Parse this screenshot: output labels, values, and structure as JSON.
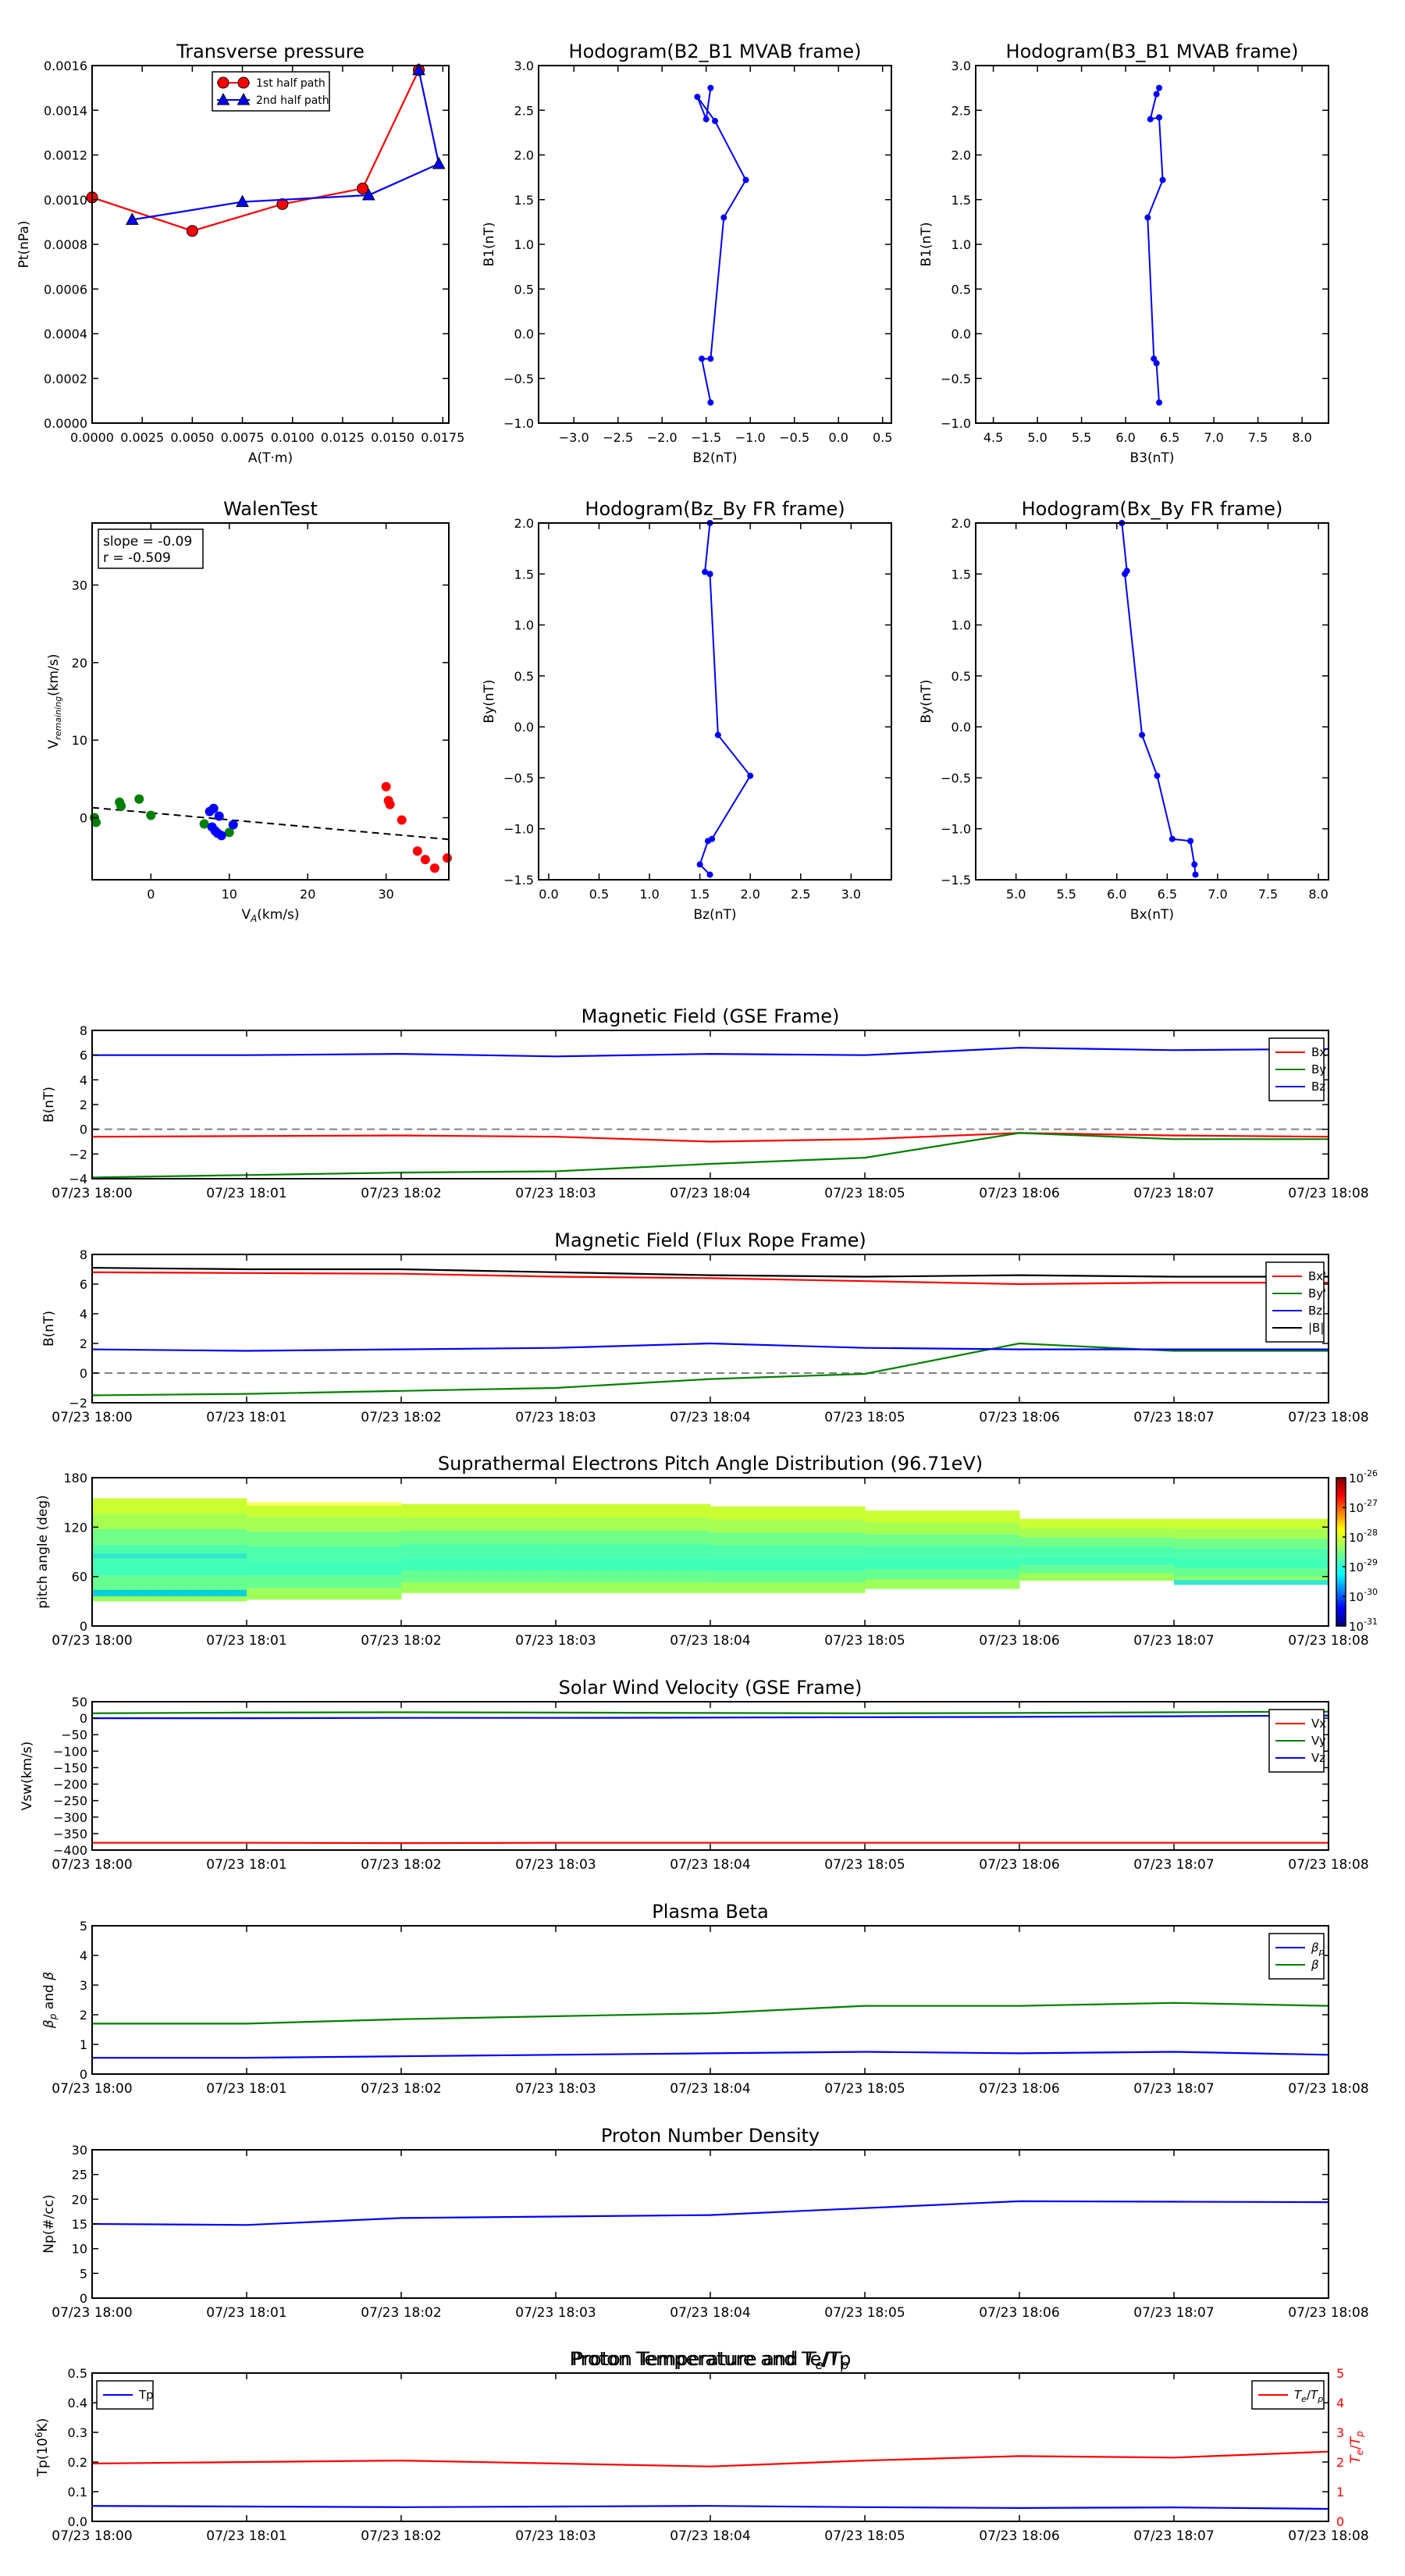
{
  "time_ticks": [
    "07/23 18:00",
    "07/23 18:01",
    "07/23 18:02",
    "07/23 18:03",
    "07/23 18:04",
    "07/23 18:05",
    "07/23 18:06",
    "07/23 18:07",
    "07/23 18:08"
  ],
  "colors": {
    "red": "#ff0000",
    "green": "#008000",
    "blue": "#0000ff",
    "black": "#000000",
    "cyan": "#00bfbf",
    "red_axis": "#ff0000"
  },
  "chart_data": [
    {
      "id": "tp",
      "type": "line",
      "title": "Transverse pressure",
      "xlabel": "A(T·m)",
      "ylabel": "Pt(nPa)",
      "xlim": [
        0,
        0.0178
      ],
      "ylim": [
        0,
        0.0016
      ],
      "xticks": [
        "0.0000",
        "0.0025",
        "0.0050",
        "0.0075",
        "0.0100",
        "0.0125",
        "0.0150",
        "0.0175"
      ],
      "xtick_values": [
        0,
        0.0025,
        0.005,
        0.0075,
        0.01,
        0.0125,
        0.015,
        0.0175
      ],
      "yticks": [
        "0.0000",
        "0.0002",
        "0.0004",
        "0.0006",
        "0.0008",
        "0.0010",
        "0.0012",
        "0.0014",
        "0.0016"
      ],
      "ytick_values": [
        0,
        0.0002,
        0.0004,
        0.0006,
        0.0008,
        0.001,
        0.0012,
        0.0014,
        0.0016
      ],
      "legend": "top-center",
      "series": [
        {
          "name": "1st half path",
          "color": "red",
          "marker": "circle",
          "x": [
            0.0,
            0.005,
            0.0095,
            0.0135,
            0.0163
          ],
          "y": [
            0.00101,
            0.00086,
            0.00098,
            0.00105,
            0.00158
          ]
        },
        {
          "name": "2nd half path",
          "color": "blue",
          "marker": "triangle",
          "x": [
            0.0163,
            0.0173,
            0.0138,
            0.0075,
            0.002
          ],
          "y": [
            0.00158,
            0.00116,
            0.00102,
            0.00099,
            0.00091
          ]
        }
      ]
    },
    {
      "id": "h1",
      "type": "line",
      "title": "Hodogram(B2_B1 MVAB frame)",
      "xlabel": "B2(nT)",
      "ylabel": "B1(nT)",
      "xlim": [
        -3.4,
        0.6
      ],
      "ylim": [
        -1.0,
        3.0
      ],
      "xticks": [
        "−3.0",
        "−2.5",
        "−2.0",
        "−1.5",
        "−1.0",
        "−0.5",
        "0.0",
        "0.5"
      ],
      "xtick_values": [
        -3,
        -2.5,
        -2,
        -1.5,
        -1,
        -0.5,
        0,
        0.5
      ],
      "yticks": [
        "−1.0",
        "−0.5",
        "0.0",
        "0.5",
        "1.0",
        "1.5",
        "2.0",
        "2.5",
        "3.0"
      ],
      "ytick_values": [
        -1,
        -0.5,
        0,
        0.5,
        1,
        1.5,
        2,
        2.5,
        3
      ],
      "series": [
        {
          "color": "blue",
          "marker": "dot",
          "x": [
            -1.45,
            -1.5,
            -1.6,
            -1.4,
            -1.05,
            -1.3,
            -1.45,
            -1.55,
            -1.45
          ],
          "y": [
            2.75,
            2.4,
            2.65,
            2.38,
            1.72,
            1.3,
            -0.28,
            -0.28,
            -0.77
          ]
        }
      ]
    },
    {
      "id": "h2",
      "type": "line",
      "title": "Hodogram(B3_B1 MVAB frame)",
      "xlabel": "B3(nT)",
      "ylabel": "B1(nT)",
      "xlim": [
        4.3,
        8.3
      ],
      "ylim": [
        -1.0,
        3.0
      ],
      "xticks": [
        "4.5",
        "5.0",
        "5.5",
        "6.0",
        "6.5",
        "7.0",
        "7.5",
        "8.0"
      ],
      "xtick_values": [
        4.5,
        5,
        5.5,
        6,
        6.5,
        7,
        7.5,
        8
      ],
      "yticks": [
        "−1.0",
        "−0.5",
        "0.0",
        "0.5",
        "1.0",
        "1.5",
        "2.0",
        "2.5",
        "3.0"
      ],
      "ytick_values": [
        -1,
        -0.5,
        0,
        0.5,
        1,
        1.5,
        2,
        2.5,
        3
      ],
      "series": [
        {
          "color": "blue",
          "marker": "dot",
          "x": [
            6.38,
            6.35,
            6.28,
            6.38,
            6.42,
            6.25,
            6.32,
            6.35,
            6.38
          ],
          "y": [
            2.75,
            2.68,
            2.4,
            2.42,
            1.72,
            1.3,
            -0.28,
            -0.33,
            -0.77
          ]
        }
      ]
    },
    {
      "id": "walen",
      "type": "scatter",
      "title": "WalenTest",
      "xlabel": "V_A(km/s)",
      "ylabel": "V_remaining(km/s)",
      "xlim": [
        -7.5,
        38
      ],
      "ylim": [
        -8,
        38
      ],
      "xticks": [
        "0",
        "10",
        "20",
        "30"
      ],
      "xtick_values": [
        0,
        10,
        20,
        30
      ],
      "yticks": [
        "0",
        "10",
        "20",
        "30"
      ],
      "ytick_values": [
        0,
        10,
        20,
        30
      ],
      "annotation": [
        "slope = -0.09",
        "r = -0.509"
      ],
      "fit": {
        "x": [
          -7.5,
          38
        ],
        "y": [
          1.3,
          -2.8
        ]
      },
      "series": [
        {
          "color": "green",
          "x": [
            -7.2,
            -7.0,
            -4.0,
            -3.8,
            -1.5,
            0.0,
            6.8,
            10.0
          ],
          "y": [
            0.0,
            -0.6,
            2.0,
            1.5,
            2.4,
            0.3,
            -0.8,
            -1.9
          ]
        },
        {
          "color": "blue",
          "x": [
            7.5,
            8.0,
            7.8,
            8.5,
            9.0,
            8.2,
            8.7,
            10.5
          ],
          "y": [
            0.8,
            1.2,
            -1.2,
            -2.0,
            -2.3,
            -1.7,
            0.2,
            -0.9
          ]
        },
        {
          "color": "red",
          "x": [
            30.0,
            30.3,
            30.5,
            32.0,
            34.0,
            35.0,
            36.2,
            37.8
          ],
          "y": [
            4.0,
            2.2,
            1.7,
            -0.3,
            -4.3,
            -5.4,
            -6.5,
            -5.2
          ]
        }
      ]
    },
    {
      "id": "h3",
      "type": "line",
      "title": "Hodogram(Bz_By FR frame)",
      "xlabel": "Bz(nT)",
      "ylabel": "By(nT)",
      "xlim": [
        -0.1,
        3.4
      ],
      "ylim": [
        -1.5,
        2.0
      ],
      "xticks": [
        "0.0",
        "0.5",
        "1.0",
        "1.5",
        "2.0",
        "2.5",
        "3.0"
      ],
      "xtick_values": [
        0,
        0.5,
        1,
        1.5,
        2,
        2.5,
        3
      ],
      "yticks": [
        "−1.5",
        "−1.0",
        "−0.5",
        "0.0",
        "0.5",
        "1.0",
        "1.5",
        "2.0"
      ],
      "ytick_values": [
        -1.5,
        -1,
        -0.5,
        0,
        0.5,
        1,
        1.5,
        2
      ],
      "series": [
        {
          "color": "blue",
          "marker": "dot",
          "x": [
            1.6,
            1.55,
            1.6,
            1.6,
            1.68,
            2.0,
            1.62,
            1.58,
            1.5,
            1.6
          ],
          "y": [
            2.0,
            1.52,
            1.5,
            1.5,
            -0.08,
            -0.48,
            -1.1,
            -1.12,
            -1.35,
            -1.45
          ]
        }
      ]
    },
    {
      "id": "h4",
      "type": "line",
      "title": "Hodogram(Bx_By FR frame)",
      "xlabel": "Bx(nT)",
      "ylabel": "By(nT)",
      "xlim": [
        4.6,
        8.1
      ],
      "ylim": [
        -1.5,
        2.0
      ],
      "xticks": [
        "5.0",
        "5.5",
        "6.0",
        "6.5",
        "7.0",
        "7.5",
        "8.0"
      ],
      "xtick_values": [
        5,
        5.5,
        6,
        6.5,
        7,
        7.5,
        8
      ],
      "yticks": [
        "−1.5",
        "−1.0",
        "−0.5",
        "0.0",
        "0.5",
        "1.0",
        "1.5",
        "2.0"
      ],
      "ytick_values": [
        -1.5,
        -1,
        -0.5,
        0,
        0.5,
        1,
        1.5,
        2
      ],
      "series": [
        {
          "color": "blue",
          "marker": "dot",
          "x": [
            6.05,
            6.1,
            6.08,
            6.25,
            6.4,
            6.55,
            6.73,
            6.77,
            6.78
          ],
          "y": [
            2.0,
            1.53,
            1.5,
            -0.08,
            -0.48,
            -1.1,
            -1.12,
            -1.35,
            -1.45
          ]
        }
      ]
    },
    {
      "id": "mag_gse",
      "type": "line",
      "title": "Magnetic Field (GSE Frame)",
      "ylabel": "B(nT)",
      "ylim": [
        -4,
        8
      ],
      "yticks": [
        "−4",
        "−2",
        "0",
        "2",
        "4",
        "6",
        "8"
      ],
      "ytick_values": [
        -4,
        -2,
        0,
        2,
        4,
        6,
        8
      ],
      "zero_line": 0,
      "legend": "top-right",
      "x_minutes": [
        0,
        1,
        2,
        3,
        4,
        5,
        6,
        7,
        8
      ],
      "series": [
        {
          "name": "Bx",
          "color": "red",
          "values": [
            -0.6,
            -0.55,
            -0.5,
            -0.6,
            -1.0,
            -0.8,
            -0.3,
            -0.5,
            -0.6
          ]
        },
        {
          "name": "By",
          "color": "green",
          "values": [
            -3.9,
            -3.7,
            -3.5,
            -3.4,
            -2.8,
            -2.3,
            -0.3,
            -0.8,
            -0.8
          ]
        },
        {
          "name": "Bz",
          "color": "blue",
          "values": [
            6.0,
            6.0,
            6.1,
            5.9,
            6.1,
            6.0,
            6.6,
            6.4,
            6.5
          ]
        }
      ]
    },
    {
      "id": "mag_fr",
      "type": "line",
      "title": "Magnetic Field (Flux Rope Frame)",
      "ylabel": "B(nT)",
      "ylim": [
        -2,
        8
      ],
      "yticks": [
        "−2",
        "0",
        "2",
        "4",
        "6",
        "8"
      ],
      "ytick_values": [
        -2,
        0,
        2,
        4,
        6,
        8
      ],
      "zero_line": 0,
      "legend": "right",
      "x_minutes": [
        0,
        1,
        2,
        3,
        4,
        5,
        6,
        7,
        8
      ],
      "series": [
        {
          "name": "Bx'",
          "color": "red",
          "values": [
            6.8,
            6.75,
            6.7,
            6.5,
            6.4,
            6.2,
            6.0,
            6.1,
            6.1
          ]
        },
        {
          "name": "By'",
          "color": "green",
          "values": [
            -1.5,
            -1.4,
            -1.2,
            -1.0,
            -0.4,
            -0.05,
            2.0,
            1.5,
            1.5
          ]
        },
        {
          "name": "Bz'",
          "color": "blue",
          "values": [
            1.6,
            1.5,
            1.6,
            1.7,
            2.0,
            1.7,
            1.6,
            1.6,
            1.6
          ]
        },
        {
          "name": "|B|",
          "color": "black",
          "values": [
            7.1,
            7.0,
            7.0,
            6.8,
            6.6,
            6.5,
            6.6,
            6.5,
            6.5
          ]
        }
      ]
    },
    {
      "id": "pad",
      "type": "heatmap",
      "title": "Suprathermal Electrons Pitch Angle Distribution (96.71eV)",
      "ylabel": "pitch angle (deg)",
      "ylim": [
        0,
        180
      ],
      "yticks": [
        "0",
        "60",
        "120",
        "180"
      ],
      "ytick_values": [
        0,
        60,
        120,
        180
      ],
      "colorbar_ticks": [
        "10^-26",
        "10^-27",
        "10^-28",
        "10^-29",
        "10^-30",
        "10^-31"
      ],
      "columns": [
        {
          "t0": 0,
          "t1": 1,
          "lo": 30,
          "hi": 155
        },
        {
          "t0": 1,
          "t1": 2,
          "lo": 32,
          "hi": 150
        },
        {
          "t0": 2,
          "t1": 3,
          "lo": 40,
          "hi": 148
        },
        {
          "t0": 3,
          "t1": 4,
          "lo": 40,
          "hi": 148
        },
        {
          "t0": 4,
          "t1": 5,
          "lo": 40,
          "hi": 145
        },
        {
          "t0": 5,
          "t1": 6,
          "lo": 45,
          "hi": 140
        },
        {
          "t0": 6,
          "t1": 7,
          "lo": 55,
          "hi": 130
        },
        {
          "t0": 7,
          "t1": 8,
          "lo": 50,
          "hi": 130
        }
      ]
    },
    {
      "id": "vsw",
      "type": "line",
      "title": "Solar Wind Velocity (GSE Frame)",
      "ylabel": "Vsw(km/s)",
      "ylim": [
        -400,
        50
      ],
      "yticks": [
        "−400",
        "−350",
        "−300",
        "−250",
        "−200",
        "−150",
        "−100",
        "−50",
        "0",
        "50"
      ],
      "ytick_values": [
        -400,
        -350,
        -300,
        -250,
        -200,
        -150,
        -100,
        -50,
        0,
        50
      ],
      "legend": "top-right",
      "x_minutes": [
        0,
        1,
        2,
        3,
        4,
        5,
        6,
        7,
        8
      ],
      "series": [
        {
          "name": "Vx",
          "color": "red",
          "values": [
            -378,
            -378,
            -379,
            -378,
            -378,
            -378,
            -378,
            -378,
            -378
          ]
        },
        {
          "name": "Vy",
          "color": "green",
          "values": [
            15,
            17,
            18,
            17,
            16,
            15,
            16,
            18,
            20
          ]
        },
        {
          "name": "Vz",
          "color": "blue",
          "values": [
            0,
            0,
            1,
            1,
            2,
            3,
            4,
            6,
            8
          ]
        }
      ]
    },
    {
      "id": "beta",
      "type": "line",
      "title": "Plasma Beta",
      "ylabel": "βp and β",
      "ylim": [
        0,
        5
      ],
      "yticks": [
        "0",
        "1",
        "2",
        "3",
        "4",
        "5"
      ],
      "ytick_values": [
        0,
        1,
        2,
        3,
        4,
        5
      ],
      "legend": "top-right",
      "x_minutes": [
        0,
        1,
        2,
        3,
        4,
        5,
        6,
        7,
        8
      ],
      "series": [
        {
          "name": "βp",
          "color": "blue",
          "values": [
            0.55,
            0.55,
            0.6,
            0.65,
            0.7,
            0.75,
            0.7,
            0.75,
            0.65
          ]
        },
        {
          "name": "β",
          "color": "green",
          "values": [
            1.7,
            1.7,
            1.85,
            1.95,
            2.05,
            2.3,
            2.3,
            2.4,
            2.3
          ]
        }
      ]
    },
    {
      "id": "np",
      "type": "line",
      "title": "Proton Number Density",
      "ylabel": "Np(#/cc)",
      "ylim": [
        0,
        30
      ],
      "yticks": [
        "0",
        "5",
        "10",
        "15",
        "20",
        "25",
        "30"
      ],
      "ytick_values": [
        0,
        5,
        10,
        15,
        20,
        25,
        30
      ],
      "x_minutes": [
        0,
        1,
        2,
        3,
        4,
        5,
        6,
        7,
        8
      ],
      "series": [
        {
          "color": "blue",
          "values": [
            15,
            14.8,
            16.2,
            16.5,
            16.8,
            18.2,
            19.6,
            19.5,
            19.4
          ]
        }
      ]
    },
    {
      "id": "temp",
      "type": "line",
      "title": "Proton Temperature and Te/Tp",
      "ylabel": "Tp(10^6K)",
      "ylabel2": "Te/Tp",
      "ylim": [
        0,
        0.5
      ],
      "yticks": [
        "0.0",
        "0.1",
        "0.2",
        "0.3",
        "0.4",
        "0.5"
      ],
      "ytick_values": [
        0,
        0.1,
        0.2,
        0.3,
        0.4,
        0.5
      ],
      "ylim2": [
        0,
        5
      ],
      "yticks2": [
        "0",
        "1",
        "2",
        "3",
        "4",
        "5"
      ],
      "ytick_values2": [
        0,
        1,
        2,
        3,
        4,
        5
      ],
      "x_minutes": [
        0,
        1,
        2,
        3,
        4,
        5,
        6,
        7,
        8
      ],
      "series": [
        {
          "name": "Tp",
          "color": "blue",
          "axis": "left",
          "values": [
            0.052,
            0.05,
            0.048,
            0.05,
            0.052,
            0.048,
            0.045,
            0.047,
            0.042
          ]
        },
        {
          "name": "Te/Tp",
          "color": "red",
          "axis": "right",
          "values": [
            1.95,
            2.0,
            2.05,
            1.95,
            1.85,
            2.05,
            2.2,
            2.15,
            2.35
          ]
        }
      ]
    }
  ]
}
